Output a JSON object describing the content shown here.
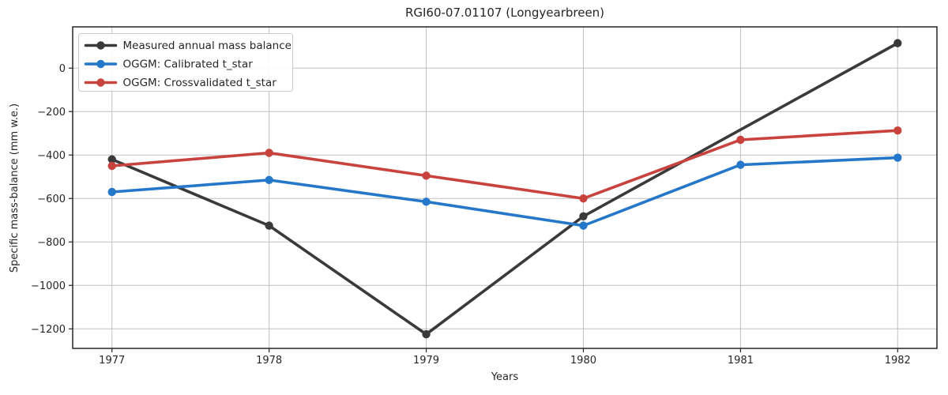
{
  "title": "RGI60-07.01107 (Longyearbreen)",
  "chart_data": {
    "type": "line",
    "title": "RGI60-07.01107 (Longyearbreen)",
    "xlabel": "Years",
    "ylabel": "Specific mass-balance (mm w.e.)",
    "x_ticks": [
      1977,
      1978,
      1979,
      1980,
      1981,
      1982
    ],
    "y_ticks": [
      0,
      -200,
      -400,
      -600,
      -800,
      -1000,
      -1200
    ],
    "xlim": [
      1976.75,
      1982.25
    ],
    "ylim": [
      -1290,
      190
    ],
    "grid": true,
    "grid_color": "#c0c0c0",
    "spine_color": "#262626",
    "legend_position": "upper left",
    "series": [
      {
        "name": "Measured annual mass balance",
        "color": "#3a3a3a",
        "x": [
          1977,
          1978,
          1979,
          1980,
          1982
        ],
        "values": [
          -420,
          -725,
          -1225,
          -682,
          115
        ]
      },
      {
        "name": "OGGM: Calibrated t_star",
        "color": "#2477c9",
        "x": [
          1977,
          1978,
          1979,
          1980,
          1981,
          1982
        ],
        "values": [
          -570,
          -515,
          -615,
          -725,
          -445,
          -412
        ]
      },
      {
        "name": "OGGM: Crossvalidated t_star",
        "color": "#c8423e",
        "x": [
          1977,
          1978,
          1979,
          1980,
          1981,
          1982
        ],
        "values": [
          -450,
          -390,
          -495,
          -600,
          -330,
          -287
        ]
      }
    ]
  }
}
